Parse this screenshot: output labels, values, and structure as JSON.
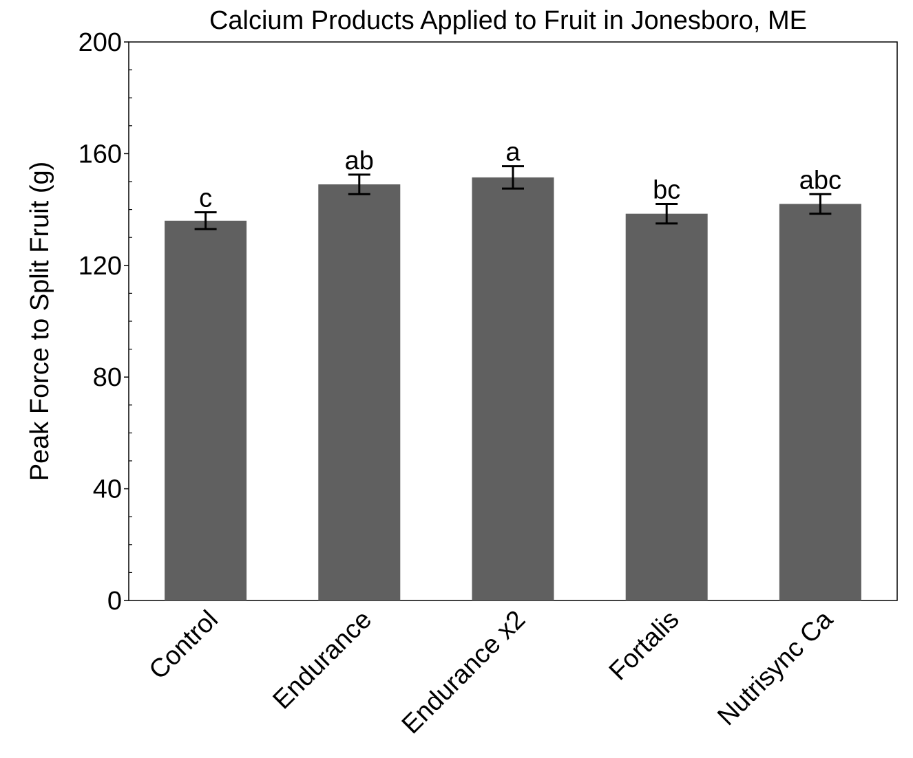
{
  "chart_data": {
    "type": "bar",
    "title": "Calcium Products Applied to Fruit in Jonesboro, ME",
    "xlabel": "",
    "ylabel": "Peak Force to Split Fruit (g)",
    "ylim": [
      0,
      200
    ],
    "yticks": [
      0,
      40,
      80,
      120,
      160,
      200
    ],
    "minor_step": 10,
    "grid": false,
    "categories": [
      "Control",
      "Endurance",
      "Endurance x2",
      "Fortalis",
      "Nutrisync Ca"
    ],
    "values": [
      136,
      149,
      151.5,
      138.5,
      142
    ],
    "errors": [
      3,
      3.5,
      4,
      3.5,
      3.5
    ],
    "significance": [
      "c",
      "ab",
      "a",
      "bc",
      "abc"
    ],
    "bar_color": "#606060"
  }
}
